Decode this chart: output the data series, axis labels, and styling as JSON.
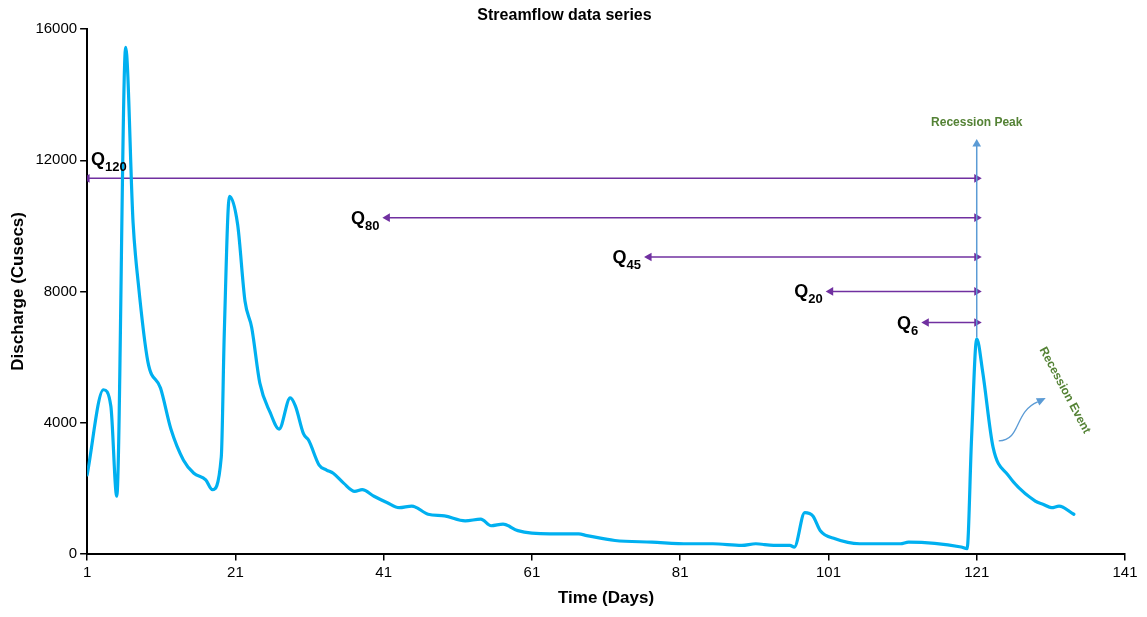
{
  "chart_data": {
    "type": "line",
    "title": "Streamflow data series",
    "xlabel": "Time (Days)",
    "ylabel": "Discharge (Cusecs)",
    "x": [
      1,
      3.2,
      4.2,
      5,
      6.2,
      7.2,
      7.9,
      9.2,
      10.9,
      12.3,
      14,
      15.4,
      17,
      17.9,
      19.1,
      19.5,
      20.2,
      21.3,
      22.3,
      23.2,
      24.3,
      25.7,
      26.9,
      28.4,
      29.1,
      30.2,
      30.9,
      32.3,
      33.3,
      34.2,
      35.6,
      37.1,
      38.1,
      39.7,
      41.5,
      43.1,
      44.8,
      47,
      49.2,
      52,
      54.1,
      55.5,
      57.1,
      59.1,
      63.4,
      67.3,
      68.4,
      72.2,
      77.2,
      82.1,
      85.4,
      89.3,
      91.2,
      93.6,
      95.8,
      96.4,
      97.8,
      98.9,
      99.9,
      101.9,
      105.2,
      110.7,
      111.8,
      118.9,
      119.7,
      120.3,
      121,
      121.8,
      123.2,
      125.2,
      128.9,
      130,
      131.1,
      132.1,
      134.1
    ],
    "series": [
      {
        "color": "#00b0f0",
        "values": [
          2400,
          5000,
          4500,
          1750,
          15450,
          10100,
          8250,
          5850,
          5050,
          3800,
          2850,
          2450,
          2250,
          1950,
          2950,
          6700,
          10900,
          10050,
          7700,
          6900,
          5200,
          4300,
          3800,
          4750,
          4500,
          3650,
          3450,
          2700,
          2550,
          2450,
          2150,
          1900,
          1950,
          1750,
          1550,
          1400,
          1450,
          1200,
          1150,
          1000,
          1050,
          850,
          900,
          700,
          600,
          600,
          550,
          400,
          350,
          300,
          300,
          250,
          300,
          250,
          250,
          200,
          1250,
          1150,
          700,
          450,
          300,
          300,
          350,
          200,
          150,
          3500,
          6550,
          5550,
          3250,
          2400,
          1600,
          1500,
          1400,
          1450,
          1200
        ]
      },
      {
        "color": "#5b9bd5",
        "marker": "triangle",
        "x": [
          121,
          121
        ],
        "values": [
          6600,
          12500
        ]
      },
      {
        "color": "#7030a0",
        "marker": "triangle",
        "x": [
          1,
          121
        ],
        "values": [
          11450,
          11450
        ]
      },
      {
        "color": "#7030a0",
        "marker": "triangle",
        "x": [
          41.5,
          121
        ],
        "values": [
          10250,
          10250
        ]
      },
      {
        "color": "#7030a0",
        "marker": "triangle",
        "x": [
          76.8,
          121
        ],
        "values": [
          9050,
          9050
        ]
      },
      {
        "color": "#7030a0",
        "marker": "triangle",
        "x": [
          101.3,
          121
        ],
        "values": [
          8000,
          8000
        ]
      },
      {
        "color": "#7030a0",
        "marker": "triangle",
        "x": [
          114.2,
          121
        ],
        "values": [
          7050,
          7050
        ]
      }
    ],
    "xlim": [
      1,
      141
    ],
    "xticks": [
      1,
      21,
      41,
      61,
      81,
      101,
      121,
      141
    ],
    "ylim": [
      0,
      16000
    ],
    "yticks": [
      0,
      4000,
      8000,
      12000,
      16000
    ],
    "grid": false,
    "legend": false,
    "marker": "none",
    "line_style": "solid",
    "annotations": [
      {
        "text": "Recession Peak",
        "x": 121,
        "y": 12500
      },
      {
        "text": "Q$_{120}$",
        "x": 1,
        "y": 11450
      },
      {
        "text": "Q$_{80}$",
        "x": 41.5,
        "y": 10250
      },
      {
        "text": "Q$_{45}$",
        "x": 76.8,
        "y": 9050
      },
      {
        "text": "Q$_{20}$",
        "x": 101.3,
        "y": 8000
      },
      {
        "text": "Q$_{6}$",
        "x": 114.2,
        "y": 7050
      },
      "Recession Event"
    ]
  }
}
